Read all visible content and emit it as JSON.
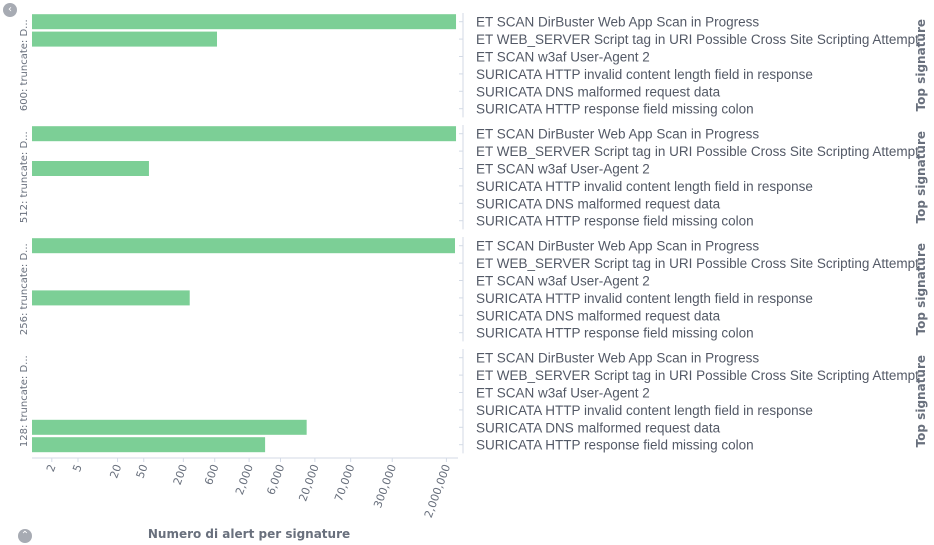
{
  "chart_data": {
    "type": "bar",
    "orientation": "horizontal",
    "x_scale": "log",
    "xlim": [
      1,
      3000000
    ],
    "x_tick_labels": [
      "2",
      "5",
      "20",
      "50",
      "200",
      "600",
      "2,000",
      "6,000",
      "20,000",
      "70,000",
      "300,000",
      "2,000,000"
    ],
    "xlabel": "Numero di alert per signature",
    "y_axis_title": "Top signature",
    "categories": [
      "ET SCAN DirBuster Web App Scan in Progress",
      "ET WEB_SERVER Script tag in URI Possible Cross Site Scripting Attempt",
      "ET SCAN w3af User-Agent 2",
      "SURICATA HTTP invalid content length field in response",
      "SURICATA DNS malformed request data",
      "SURICATA HTTP response field missing colon"
    ],
    "color": "#7ccf96",
    "panels": [
      {
        "title": "600: truncate: D...",
        "values": [
          2800000,
          650,
          null,
          null,
          null,
          null
        ]
      },
      {
        "title": "512: truncate: D...",
        "values": [
          2800000,
          null,
          60,
          null,
          null,
          null
        ]
      },
      {
        "title": "256: truncate: D...",
        "values": [
          2700000,
          null,
          null,
          250,
          null,
          null
        ]
      },
      {
        "title": "128: truncate: D...",
        "values": [
          null,
          null,
          null,
          null,
          15000,
          3500
        ]
      }
    ]
  },
  "controls": {
    "collapse_icon": "chevron-left-icon",
    "legend_toggle_icon": "chevron-up-icon",
    "collapse_glyph": "‹",
    "legend_glyph": "⌃"
  }
}
